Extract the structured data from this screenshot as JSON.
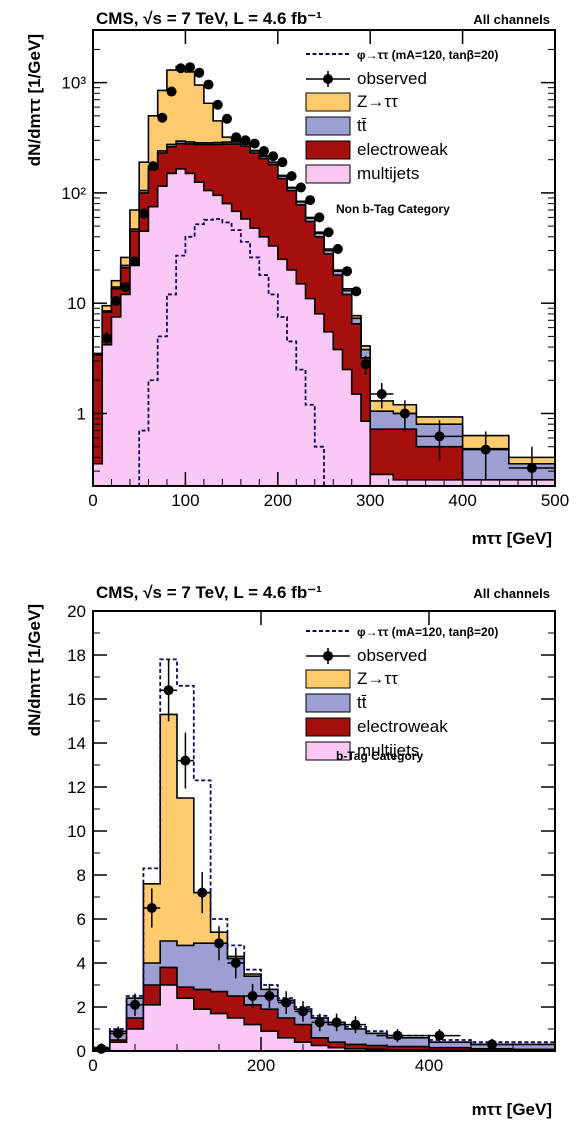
{
  "panels": [
    {
      "header_left": "CMS, √s = 7 TeV, L = 4.6 fb⁻¹",
      "header_right": "All channels",
      "category_label": "Non b-Tag Category",
      "xlabel": "mττ [GeV]",
      "ylabel": "dN/dmττ [1/GeV]"
    },
    {
      "header_left": "CMS, √s = 7 TeV, L = 4.6 fb⁻¹",
      "header_right": "All channels",
      "category_label": "b-Tag Category",
      "xlabel": "mττ [GeV]",
      "ylabel": "dN/dmττ [1/GeV]"
    }
  ],
  "legend": {
    "signal": "φ→ττ (mA=120, tanβ=20)",
    "observed": "observed",
    "ztt": "Z→ττ",
    "ttbar": "tt̄",
    "ewk": "electroweak",
    "qcd": "multijets"
  },
  "colors": {
    "ztt": "#fdcb6e",
    "ttbar": "#9d9fd2",
    "ewk": "#a50f0e",
    "qcd": "#fbc8f6",
    "signal": "#0a0a64",
    "data": "#000000"
  },
  "chart_data": [
    {
      "type": "bar",
      "subtype": "stacked-histogram",
      "title": "Non b-Tag Category",
      "xlabel": "mττ [GeV]",
      "ylabel": "dN/dmττ [1/GeV]",
      "xlim": [
        0,
        500
      ],
      "ylim": [
        0.22,
        3000
      ],
      "yscale": "log",
      "xticks": [
        0,
        100,
        200,
        300,
        400,
        500
      ],
      "yticks": [
        1,
        10,
        100,
        1000
      ],
      "yticklabels": [
        "1",
        "10",
        "10²",
        "10³"
      ],
      "legend_position": "top-right",
      "bin_edges": [
        0,
        10,
        20,
        30,
        40,
        50,
        60,
        70,
        80,
        90,
        100,
        110,
        120,
        130,
        140,
        150,
        160,
        170,
        180,
        190,
        200,
        210,
        220,
        230,
        240,
        250,
        260,
        270,
        280,
        290,
        300,
        325,
        350,
        400,
        450,
        500
      ],
      "series": [
        {
          "name": "multijets",
          "values": [
            0.35,
            4.2,
            7.5,
            12,
            22,
            45,
            75,
            115,
            150,
            165,
            150,
            125,
            105,
            95,
            80,
            68,
            58,
            48,
            40,
            33,
            25,
            20,
            15,
            11,
            8,
            5.5,
            3.8,
            2.5,
            1.5,
            0.85,
            0.28,
            0.25,
            0.25,
            0.25,
            0.25
          ]
        },
        {
          "name": "electroweak",
          "values": [
            3.4,
            8.3,
            13.5,
            21,
            45,
            100,
            165,
            230,
            262,
            280,
            278,
            275,
            275,
            275,
            277,
            278,
            265,
            230,
            205,
            180,
            135,
            105,
            78,
            55,
            40,
            28,
            18,
            12,
            6.5,
            3.2,
            0.72,
            0.72,
            0.5,
            0.25,
            0.25
          ]
        },
        {
          "name": "tt̄",
          "values": [
            3.45,
            8.5,
            14,
            22,
            47,
            105,
            175,
            240,
            275,
            295,
            290,
            285,
            285,
            286,
            289,
            290,
            277,
            240,
            214,
            188,
            142,
            111,
            83,
            59,
            43,
            30,
            19.5,
            13,
            7.3,
            3.8,
            1.05,
            1.0,
            0.8,
            0.48,
            0.35
          ]
        },
        {
          "name": "Z→ττ",
          "values": [
            3.5,
            9.5,
            16,
            26,
            70,
            190,
            500,
            850,
            1300,
            1400,
            1250,
            950,
            650,
            450,
            320,
            300,
            285,
            243,
            217,
            190,
            144,
            112,
            84,
            60,
            44,
            31,
            20,
            13.5,
            7.7,
            4.1,
            1.3,
            1.2,
            0.93,
            0.63,
            0.4
          ]
        }
      ],
      "observed": {
        "x": [
          15,
          25,
          35,
          45,
          55,
          65,
          75,
          85,
          95,
          105,
          115,
          125,
          135,
          145,
          155,
          165,
          175,
          185,
          195,
          205,
          215,
          225,
          235,
          245,
          255,
          265,
          275,
          285,
          295,
          312.5,
          337.5,
          375,
          425,
          475
        ],
        "y": [
          4.8,
          10.5,
          14,
          24,
          65,
          175,
          480,
          830,
          1350,
          1380,
          1230,
          960,
          630,
          470,
          320,
          300,
          280,
          240,
          215,
          190,
          142,
          112,
          86,
          60,
          44,
          31,
          19.5,
          12.8,
          2.8,
          1.5,
          1.0,
          0.62,
          0.47,
          0.32
        ]
      },
      "signal": {
        "name": "φ→ττ (mA=120, tanβ=20)",
        "values": [
          0.15,
          0.15,
          0.15,
          0.15,
          0.2,
          0.7,
          2.0,
          5.0,
          12,
          27,
          40,
          52,
          57,
          58,
          54,
          46,
          36,
          26,
          18,
          12,
          7.5,
          4.5,
          2.5,
          1.2,
          0.5,
          0.2,
          0.15,
          0.15,
          0.15,
          0.15,
          0.15,
          0.15,
          0.15,
          0.15,
          0.15
        ]
      }
    },
    {
      "type": "bar",
      "subtype": "stacked-histogram",
      "title": "b-Tag Category",
      "xlabel": "mττ [GeV]",
      "ylabel": "dN/dmττ [1/GeV]",
      "xlim": [
        0,
        550
      ],
      "ylim": [
        0,
        20
      ],
      "yscale": "linear",
      "xticks": [
        0,
        200,
        400
      ],
      "yticks": [
        0,
        2,
        4,
        6,
        8,
        10,
        12,
        14,
        16,
        18,
        20
      ],
      "legend_position": "top-right",
      "bin_edges": [
        0,
        20,
        40,
        60,
        80,
        100,
        120,
        140,
        160,
        180,
        200,
        220,
        240,
        260,
        280,
        300,
        325,
        350,
        400,
        450,
        500,
        550
      ],
      "series": [
        {
          "name": "multijets",
          "values": [
            0.05,
            0.4,
            1.0,
            2.1,
            3.0,
            2.4,
            1.9,
            1.7,
            1.5,
            1.2,
            0.9,
            0.6,
            0.4,
            0.25,
            0.15,
            0.1,
            0.08,
            0.05,
            0.03,
            0.02,
            0.01
          ]
        },
        {
          "name": "electroweak",
          "values": [
            0.1,
            0.5,
            1.5,
            3.0,
            3.8,
            2.9,
            2.8,
            2.7,
            2.5,
            2.1,
            1.9,
            1.5,
            1.2,
            0.6,
            0.4,
            0.3,
            0.25,
            0.2,
            0.15,
            0.1,
            0.08
          ]
        },
        {
          "name": "tt̄",
          "values": [
            0.15,
            0.8,
            2.4,
            4.0,
            5.0,
            4.8,
            4.9,
            4.9,
            4.2,
            3.4,
            2.8,
            2.3,
            1.9,
            1.5,
            1.2,
            1.0,
            0.8,
            0.6,
            0.4,
            0.3,
            0.3
          ]
        },
        {
          "name": "Z→ττ",
          "values": [
            0.15,
            0.9,
            2.4,
            7.6,
            15.3,
            11.5,
            7.2,
            5.4,
            4.3,
            3.5,
            2.8,
            2.3,
            1.9,
            1.5,
            1.2,
            1.0,
            0.8,
            0.6,
            0.4,
            0.3,
            0.3
          ]
        }
      ],
      "observed": {
        "x": [
          10,
          30,
          50,
          70,
          90,
          110,
          130,
          150,
          170,
          190,
          210,
          230,
          250,
          270,
          290,
          312.5,
          362.5,
          412.5,
          475
        ],
        "y": [
          0.1,
          0.8,
          2.1,
          6.5,
          16.4,
          13.2,
          7.2,
          4.9,
          4.0,
          2.5,
          2.5,
          2.2,
          1.8,
          1.3,
          1.3,
          1.2,
          0.7,
          0.7,
          0.3
        ]
      },
      "signal": {
        "name": "φ→ττ (mA=120, tanβ=20)",
        "values": [
          0.15,
          1.0,
          2.5,
          8.3,
          17.8,
          16.6,
          12.3,
          6.0,
          4.8,
          3.7,
          3.0,
          2.4,
          2.0,
          1.6,
          1.3,
          1.1,
          0.9,
          0.7,
          0.5,
          0.4,
          0.4
        ]
      }
    }
  ]
}
